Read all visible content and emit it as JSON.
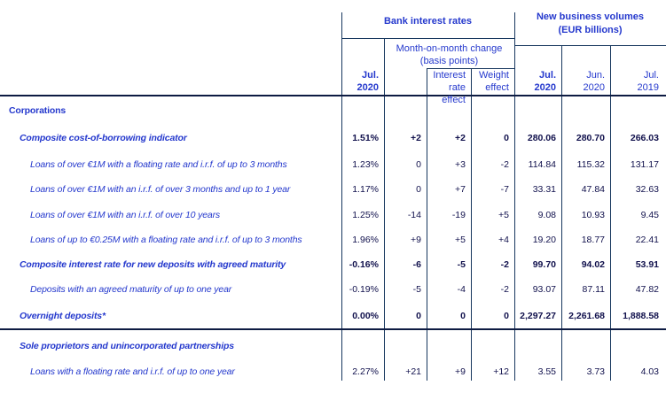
{
  "header": {
    "group1": "Bank interest rates",
    "group2_line1": "New business volumes",
    "group2_line2": "(EUR billions)",
    "sub1_line1": "Month-on-month change",
    "sub1_line2": "(basis points)",
    "cols": [
      {
        "l1": "Jul.",
        "l2": "2020",
        "bold": true
      },
      {
        "l1": "",
        "l2": "",
        "bold": false
      },
      {
        "l1": "Interest",
        "l2": "rate effect",
        "bold": false
      },
      {
        "l1": "Weight",
        "l2": "effect",
        "bold": false
      },
      {
        "l1": "Jul.",
        "l2": "2020",
        "bold": true
      },
      {
        "l1": "Jun.",
        "l2": "2020",
        "bold": false
      },
      {
        "l1": "Jul.",
        "l2": "2019",
        "bold": false
      }
    ]
  },
  "table": {
    "rows": [
      {
        "label": "Corporations",
        "kind": "section",
        "indent": 0,
        "values": [
          "",
          "",
          "",
          "",
          "",
          "",
          ""
        ]
      },
      {
        "label": "Composite cost-of-borrowing indicator",
        "kind": "aggregate",
        "indent": 1,
        "values": [
          "1.51%",
          "+2",
          "+2",
          "0",
          "280.06",
          "280.70",
          "266.03"
        ]
      },
      {
        "label": "Loans of over €1M with a floating rate and i.r.f. of up to 3 months",
        "kind": "detail",
        "indent": 2,
        "values": [
          "1.23%",
          "0",
          "+3",
          "-2",
          "114.84",
          "115.32",
          "131.17"
        ]
      },
      {
        "label": "Loans of over €1M with an i.r.f. of over 3 months and up to 1 year",
        "kind": "detail",
        "indent": 2,
        "values": [
          "1.17%",
          "0",
          "+7",
          "-7",
          "33.31",
          "47.84",
          "32.63"
        ]
      },
      {
        "label": "Loans of over €1M with an i.r.f. of over 10 years",
        "kind": "detail",
        "indent": 2,
        "values": [
          "1.25%",
          "-14",
          "-19",
          "+5",
          "9.08",
          "10.93",
          "9.45"
        ]
      },
      {
        "label": "Loans of up to €0.25M with a floating rate and i.r.f. of up to 3 months",
        "kind": "detail",
        "indent": 2,
        "values": [
          "1.96%",
          "+9",
          "+5",
          "+4",
          "19.20",
          "18.77",
          "22.41"
        ]
      },
      {
        "label": "Composite interest rate for new deposits with agreed maturity",
        "kind": "aggregate",
        "indent": 1,
        "values": [
          "-0.16%",
          "-6",
          "-5",
          "-2",
          "99.70",
          "94.02",
          "53.91"
        ]
      },
      {
        "label": "Deposits with an agreed maturity of up to one year",
        "kind": "detail",
        "indent": 2,
        "values": [
          "-0.19%",
          "-5",
          "-4",
          "-2",
          "93.07",
          "87.11",
          "47.82"
        ]
      },
      {
        "label": "Overnight deposits*",
        "kind": "aggregate",
        "indent": 1,
        "values": [
          "0.00%",
          "0",
          "0",
          "0",
          "2,297.27",
          "2,261.68",
          "1,888.58"
        ]
      },
      {
        "label": "Sole proprietors and unincorporated partnerships",
        "kind": "aggregate",
        "indent": 1,
        "values": [
          "",
          "",
          "",
          "",
          "",
          "",
          ""
        ]
      },
      {
        "label": "Loans with a floating rate and i.r.f. of up to one year",
        "kind": "detail",
        "indent": 2,
        "values": [
          "2.27%",
          "+21",
          "+9",
          "+12",
          "3.55",
          "3.73",
          "4.03"
        ]
      }
    ]
  },
  "colors": {
    "label_blue": "#2438cd",
    "value_navy": "#10104c",
    "grid_line": "#17375e",
    "heavy_line": "#0d1b42"
  }
}
